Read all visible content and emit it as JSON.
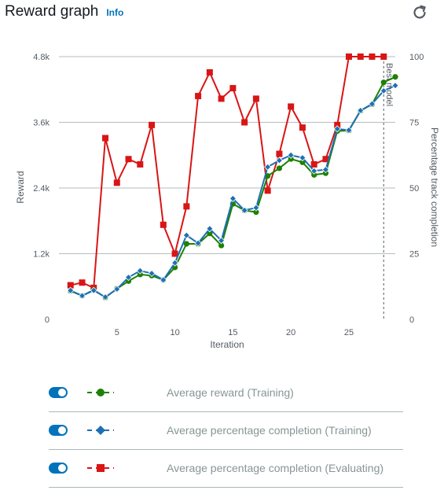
{
  "header": {
    "title": "Reward graph",
    "info_label": "Info"
  },
  "icons": {
    "refresh": "refresh-icon"
  },
  "colors": {
    "training_reward": "#1d8102",
    "training_completion": "#1f6fb5",
    "evaluating_completion": "#d91515",
    "toggle": "#0073bb"
  },
  "legend": [
    {
      "label": "Average reward (Training)",
      "marker": "circle",
      "color": "#1d8102",
      "enabled": true
    },
    {
      "label": "Average percentage completion (Training)",
      "marker": "diamond",
      "color": "#1f6fb5",
      "enabled": true
    },
    {
      "label": "Average percentage completion (Evaluating)",
      "marker": "square",
      "color": "#d91515",
      "enabled": true
    }
  ],
  "chart_data": {
    "type": "line",
    "xlabel": "Iteration",
    "ylabel": "Reward",
    "y2label": "Percentage track completion",
    "xlim": [
      0,
      29
    ],
    "ylim": [
      0,
      4800
    ],
    "y2lim": [
      0,
      100
    ],
    "x_ticks": [
      5,
      10,
      15,
      20,
      25
    ],
    "y_ticks": [
      0,
      1200,
      2400,
      3600,
      4800
    ],
    "y_tick_labels": [
      "0",
      "1.2k",
      "2.4k",
      "3.6k",
      "4.8k"
    ],
    "y2_ticks": [
      0,
      25,
      50,
      75,
      100
    ],
    "grid": "horizontal",
    "annotation": {
      "label": "Best model",
      "x": 28
    },
    "series": [
      {
        "name": "Average reward (Training)",
        "axis": "left",
        "marker": "circle",
        "color": "#1d8102",
        "x": [
          1,
          2,
          3,
          4,
          5,
          6,
          7,
          8,
          9,
          10,
          11,
          12,
          13,
          14,
          15,
          16,
          17,
          18,
          19,
          20,
          21,
          22,
          23,
          24,
          25,
          26,
          27,
          28,
          29
        ],
        "values": [
          520,
          430,
          540,
          400,
          560,
          700,
          820,
          800,
          720,
          950,
          1380,
          1380,
          1570,
          1350,
          2110,
          1990,
          1960,
          2620,
          2760,
          2930,
          2870,
          2640,
          2670,
          3440,
          3450,
          3810,
          3930,
          4330,
          4430
        ]
      },
      {
        "name": "Average percentage completion (Training)",
        "axis": "right",
        "marker": "diamond",
        "color": "#1f6fb5",
        "x": [
          1,
          2,
          3,
          4,
          5,
          6,
          7,
          8,
          9,
          10,
          11,
          12,
          13,
          14,
          15,
          16,
          17,
          18,
          19,
          20,
          21,
          22,
          23,
          24,
          25,
          26,
          27,
          28,
          29
        ],
        "values": [
          11,
          9,
          11,
          8.5,
          11.5,
          16,
          18.5,
          17.5,
          15,
          21.5,
          32,
          29,
          34.5,
          30,
          46,
          41.5,
          42.5,
          58,
          60.5,
          62.5,
          61.5,
          56.5,
          57,
          72.5,
          72,
          79.5,
          82,
          87,
          89
        ]
      },
      {
        "name": "Average percentage completion (Evaluating)",
        "axis": "right",
        "marker": "square",
        "color": "#d91515",
        "x": [
          1,
          2,
          3,
          4,
          5,
          6,
          7,
          8,
          9,
          10,
          11,
          12,
          13,
          14,
          15,
          16,
          17,
          18,
          19,
          20,
          21,
          22,
          23,
          24,
          25,
          26,
          27,
          28
        ],
        "values": [
          13,
          14,
          12,
          69,
          52,
          61,
          59,
          74,
          36,
          25,
          43,
          85,
          94,
          84,
          88,
          75,
          84,
          49,
          63,
          81,
          73,
          59,
          61,
          74,
          100,
          100,
          100,
          100
        ]
      }
    ]
  }
}
